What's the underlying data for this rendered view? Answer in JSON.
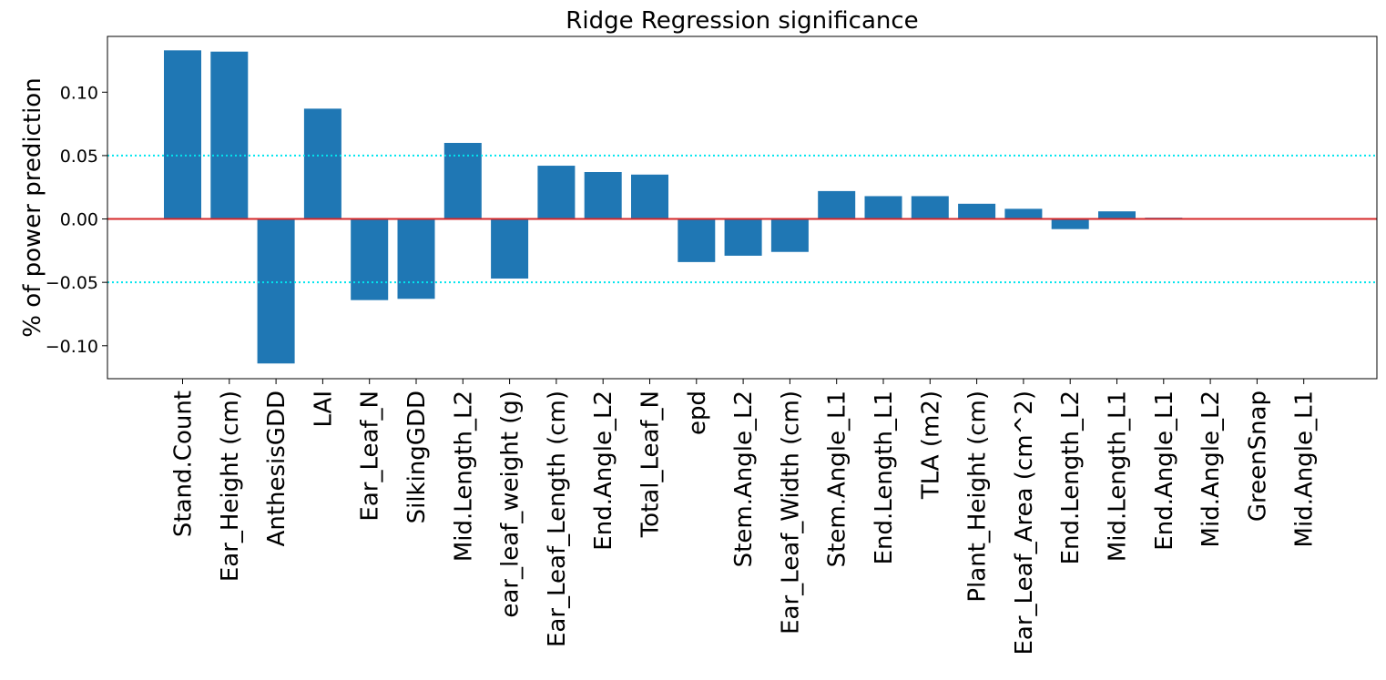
{
  "chart_data": {
    "type": "bar",
    "title": "Ridge Regression significance",
    "xlabel": "",
    "ylabel": "% of power prediction",
    "categories": [
      "Stand.Count",
      "Ear_Height (cm)",
      "AnthesisGDD",
      "LAI",
      "Ear_Leaf_N",
      "SilkingGDD",
      "Mid.Length_L2",
      "ear_leaf_weight (g)",
      "Ear_Leaf_Length (cm)",
      "End.Angle_L2",
      "Total_Leaf_N",
      "epd",
      "Stem.Angle_L2",
      "Ear_Leaf_Width (cm)",
      "Stem.Angle_L1",
      "End.Length_L1",
      "TLA (m2)",
      "Plant_Height (cm)",
      "Ear_Leaf_Area (cm^2)",
      "End.Length_L2",
      "Mid.Length_L1",
      "End.Angle_L1",
      "Mid.Angle_L2",
      "GreenSnap",
      "Mid.Angle_L1"
    ],
    "values": [
      0.133,
      0.132,
      -0.114,
      0.087,
      -0.064,
      -0.063,
      0.06,
      -0.047,
      0.042,
      0.037,
      0.035,
      -0.034,
      -0.029,
      -0.026,
      0.022,
      0.018,
      0.018,
      0.012,
      0.008,
      -0.008,
      0.006,
      0.001,
      0.0,
      0.0,
      0.0
    ],
    "ylim": [
      -0.126,
      0.144
    ],
    "yticks": [
      "0.10",
      "0.05",
      "0.00",
      "−0.05",
      "−0.10"
    ],
    "ytick_values": [
      0.1,
      0.05,
      0.0,
      -0.05,
      -0.1
    ],
    "reference_lines": [
      {
        "y": 0.0,
        "color": "#d62728",
        "style": "solid"
      },
      {
        "y": 0.05,
        "color": "#00e5ee",
        "style": "dotted"
      },
      {
        "y": -0.05,
        "color": "#00e5ee",
        "style": "dotted"
      }
    ],
    "bar_color": "#1f77b4",
    "grid": false
  }
}
